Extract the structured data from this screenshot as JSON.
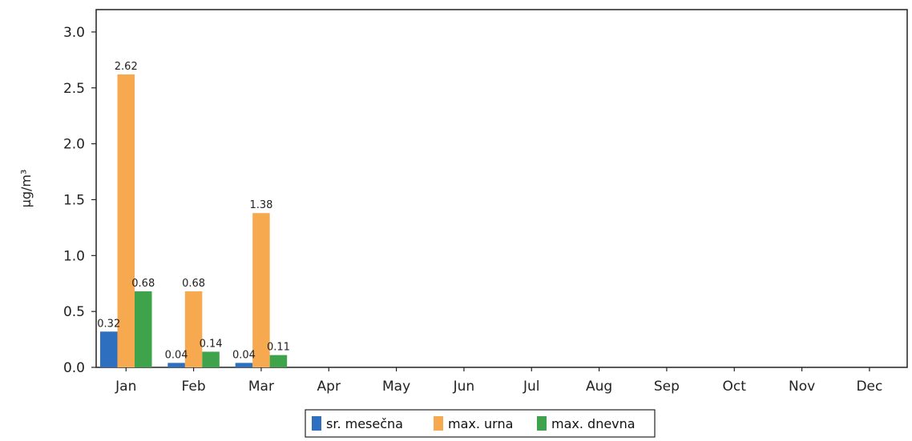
{
  "chart_data": {
    "type": "bar",
    "ylabel": "µg/m³",
    "ylim": [
      0,
      3.2
    ],
    "yticks": [
      "0.0",
      "0.5",
      "1.0",
      "1.5",
      "2.0",
      "2.5",
      "3.0"
    ],
    "ytick_values": [
      0,
      0.5,
      1.0,
      1.5,
      2.0,
      2.5,
      3.0
    ],
    "categories": [
      "Jan",
      "Feb",
      "Mar",
      "Apr",
      "May",
      "Jun",
      "Jul",
      "Aug",
      "Sep",
      "Oct",
      "Nov",
      "Dec"
    ],
    "series": [
      {
        "name": "sr. mesečna",
        "color": "#2f6fc0",
        "values": [
          0.32,
          0.04,
          0.04,
          null,
          null,
          null,
          null,
          null,
          null,
          null,
          null,
          null
        ],
        "labels": [
          "0.32",
          "0.04",
          "0.04",
          "",
          "",
          "",
          "",
          "",
          "",
          "",
          "",
          ""
        ]
      },
      {
        "name": "max. urna",
        "color": "#f7a94f",
        "values": [
          2.62,
          0.68,
          1.38,
          null,
          null,
          null,
          null,
          null,
          null,
          null,
          null,
          null
        ],
        "labels": [
          "2.62",
          "0.68",
          "1.38",
          "",
          "",
          "",
          "",
          "",
          "",
          "",
          "",
          ""
        ]
      },
      {
        "name": "max. dnevna",
        "color": "#3ea34a",
        "values": [
          0.68,
          0.14,
          0.11,
          null,
          null,
          null,
          null,
          null,
          null,
          null,
          null,
          null
        ],
        "labels": [
          "0.68",
          "0.14",
          "0.11",
          "",
          "",
          "",
          "",
          "",
          "",
          "",
          "",
          ""
        ]
      }
    ],
    "grid": false,
    "legend_position": "bottom-center"
  }
}
